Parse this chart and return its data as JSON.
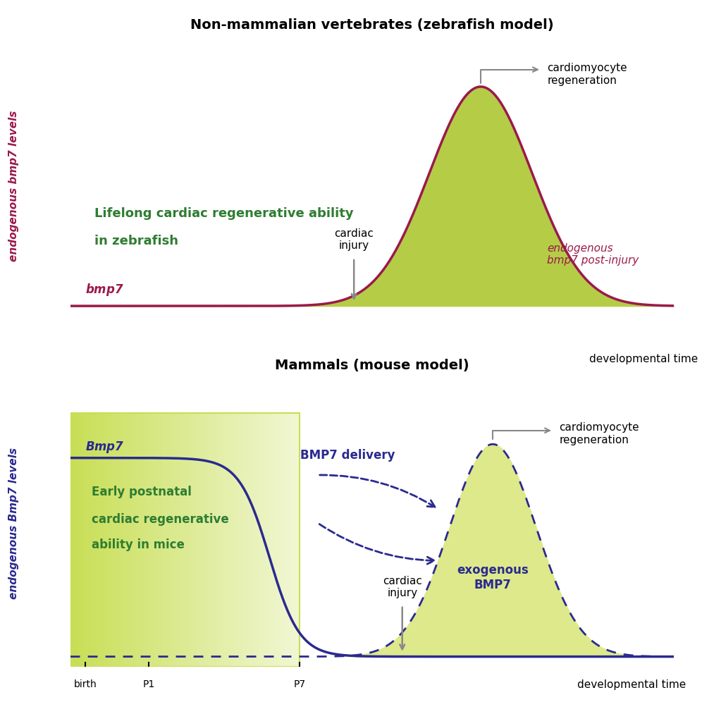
{
  "title_top": "Non-mammalian vertebrates (zebrafish model)",
  "title_bottom": "Mammals (mouse model)",
  "bg_green": "#b5cc47",
  "bg_green_light": "#dde98a",
  "bg_green_rect": "#c8de55",
  "crimson": "#9b1a4b",
  "dark_blue": "#2a2a8f",
  "dark_green": "#2e7d32",
  "gray_arrow": "#888888",
  "ylabel_top": "endogenous bmp7 levels",
  "ylabel_bottom": "endogenous Bmp7 levels",
  "xlabel": "developmental time",
  "zebrafish_text1": "Lifelong cardiac regenerative ability",
  "zebrafish_text2": "in zebrafish",
  "mouse_text1": "Early postnatal",
  "mouse_text2": "cardiac regenerative",
  "mouse_text3": "ability in mice",
  "cardiac_injury": "cardiac\ninjury",
  "regen_top": "cardiomyocyte\nregeneration",
  "regen_bottom": "cardiomyocyte\nregeneration",
  "endo_bmp7": "endogenous\nbmp7 post-injury",
  "exo_bmp7": "exogenous\nBMP7",
  "bmp7_delivery": "BMP7 delivery"
}
